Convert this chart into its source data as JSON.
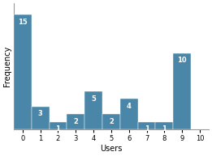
{
  "categories": [
    0,
    1,
    2,
    3,
    4,
    5,
    6,
    7,
    8,
    9
  ],
  "values": [
    15,
    3,
    1,
    2,
    5,
    2,
    4,
    1,
    1,
    10
  ],
  "bar_color": "#4a86a8",
  "xlabel": "Users",
  "ylabel": "Frequency",
  "xlim": [
    -0.5,
    10.5
  ],
  "ylim": [
    0,
    16.5
  ],
  "xticks": [
    0,
    1,
    2,
    3,
    4,
    5,
    6,
    7,
    8,
    9,
    10
  ],
  "label_color": "white",
  "label_fontsize": 6,
  "axis_fontsize": 7,
  "tick_fontsize": 6,
  "background_color": "#ffffff",
  "bar_width": 1.0
}
